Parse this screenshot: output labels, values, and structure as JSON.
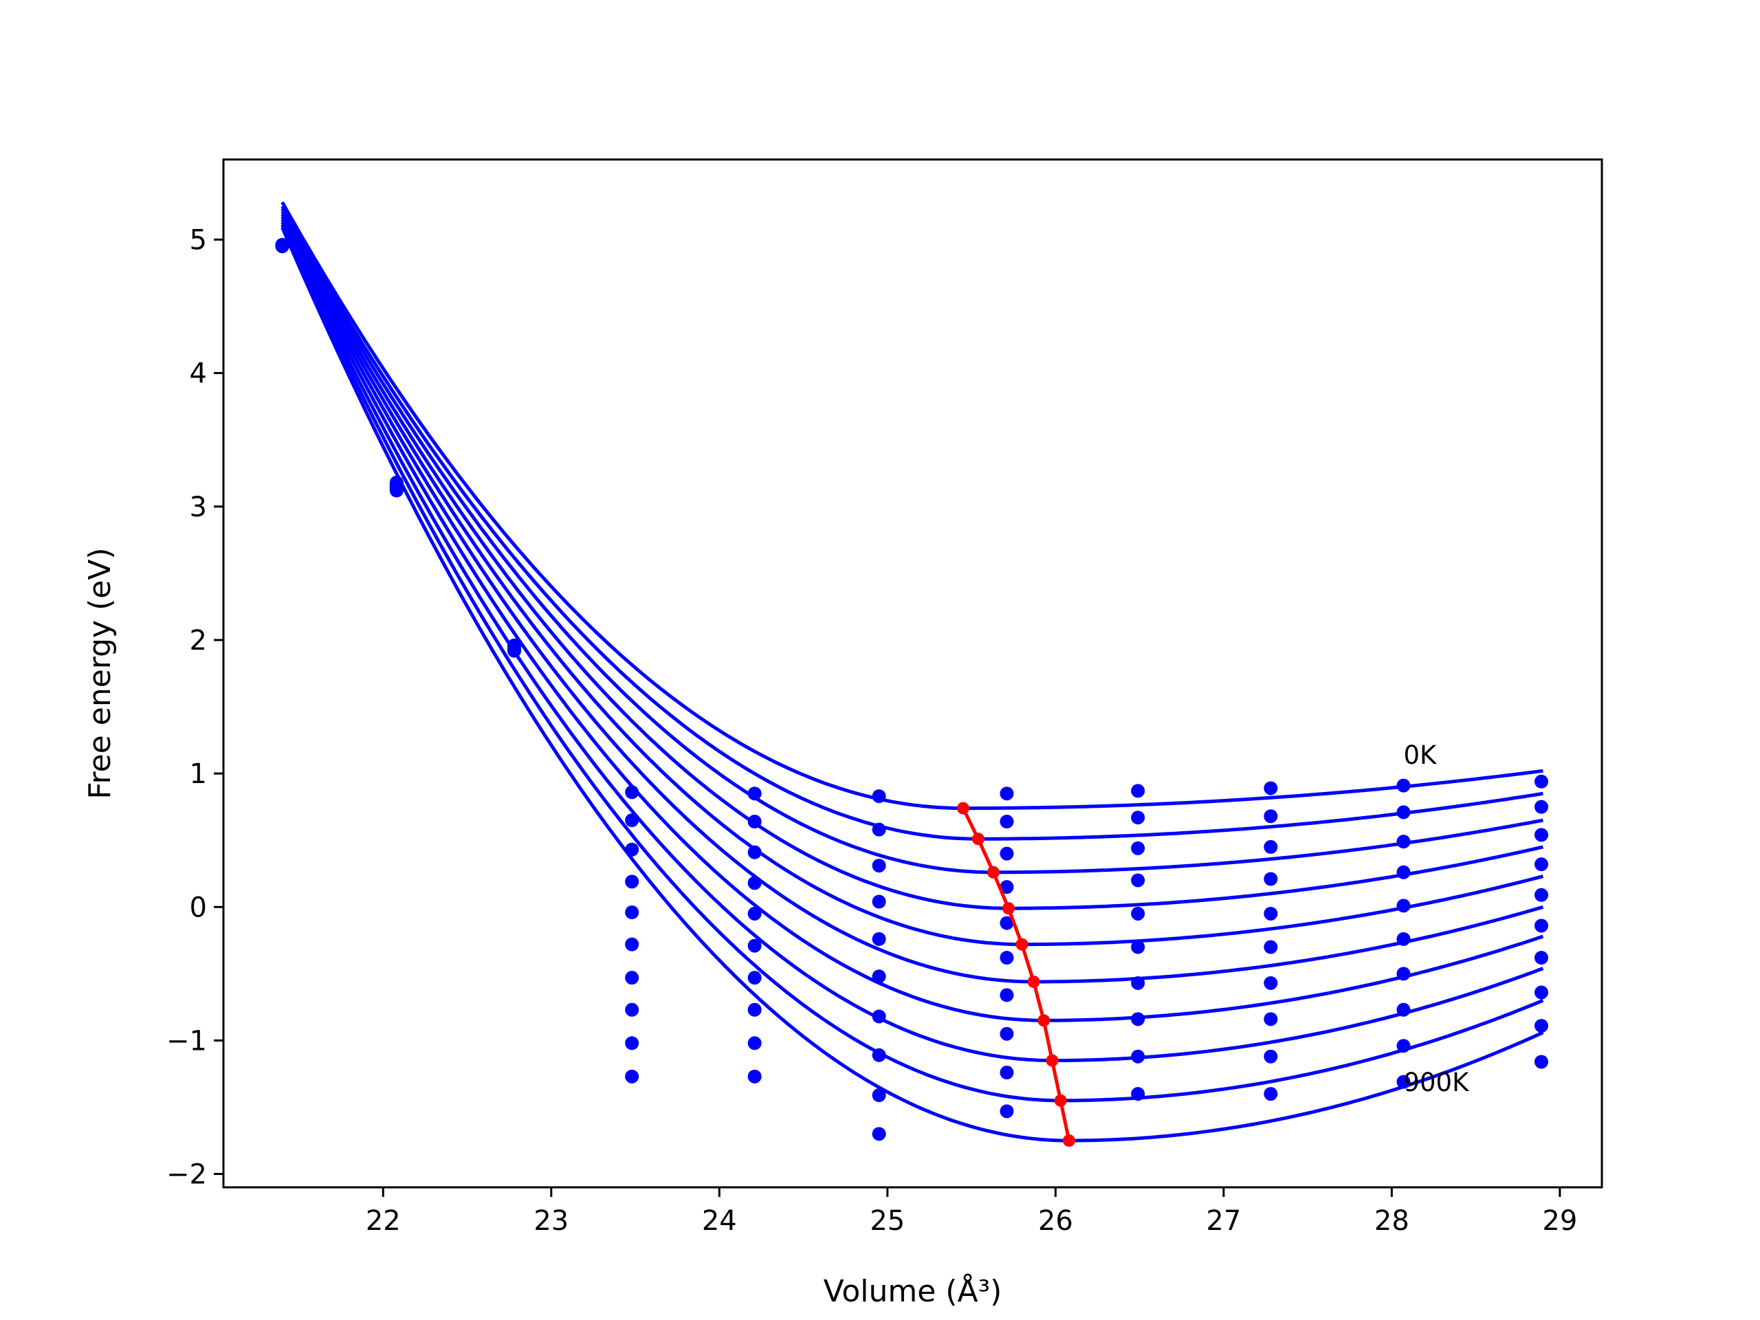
{
  "chart_data": {
    "type": "scatter",
    "xlabel": "Volume (Å³)",
    "ylabel": "Free energy (eV)",
    "xlim": [
      21.05,
      29.25
    ],
    "ylim": [
      -2.1,
      5.6
    ],
    "x_ticks": [
      22,
      23,
      24,
      25,
      26,
      27,
      28,
      29
    ],
    "y_ticks": [
      -2,
      -1,
      0,
      1,
      2,
      3,
      4,
      5
    ],
    "x_tick_labels": [
      "22",
      "23",
      "24",
      "25",
      "26",
      "27",
      "28",
      "29"
    ],
    "y_tick_labels": [
      "−2",
      "−1",
      "0",
      "1",
      "2",
      "3",
      "4",
      "5"
    ],
    "grid": false,
    "colors": {
      "curves": "#0000ff",
      "points": "#0000ff",
      "minima": "#ff0000",
      "axes": "#000000"
    },
    "curve_labels": {
      "first": "0K",
      "last": "900K"
    },
    "fit_range": [
      21.4,
      28.9
    ],
    "x": [
      21.4,
      22.08,
      22.78,
      23.48,
      24.21,
      24.95,
      25.71,
      26.49,
      27.28,
      28.07,
      28.89
    ],
    "series": [
      {
        "values": [
          4.96,
          3.18,
          1.96,
          0.86,
          0.85,
          0.83,
          0.85,
          0.87,
          0.89,
          0.91,
          0.94
        ]
      },
      {
        "values": [
          4.96,
          3.17,
          1.95,
          0.65,
          0.64,
          0.58,
          0.64,
          0.67,
          0.68,
          0.71,
          0.75
        ]
      },
      {
        "values": [
          4.96,
          3.16,
          1.95,
          0.43,
          0.41,
          0.31,
          0.4,
          0.44,
          0.45,
          0.49,
          0.54
        ]
      },
      {
        "values": [
          4.96,
          3.15,
          1.94,
          0.19,
          0.18,
          0.04,
          0.15,
          0.2,
          0.21,
          0.26,
          0.32
        ]
      },
      {
        "values": [
          4.96,
          3.15,
          1.94,
          -0.04,
          -0.05,
          -0.24,
          -0.12,
          -0.05,
          -0.05,
          0.01,
          0.09
        ]
      },
      {
        "values": [
          4.96,
          3.14,
          1.93,
          -0.28,
          -0.29,
          -0.52,
          -0.38,
          -0.3,
          -0.3,
          -0.24,
          -0.14
        ]
      },
      {
        "values": [
          4.96,
          3.14,
          1.93,
          -0.53,
          -0.53,
          -0.82,
          -0.66,
          -0.57,
          -0.57,
          -0.5,
          -0.38
        ]
      },
      {
        "values": [
          4.95,
          3.13,
          1.93,
          -0.77,
          -0.77,
          -1.11,
          -0.95,
          -0.84,
          -0.84,
          -0.77,
          -0.64
        ]
      },
      {
        "values": [
          4.95,
          3.13,
          1.92,
          -1.02,
          -1.02,
          -1.41,
          -1.24,
          -1.12,
          -1.12,
          -1.04,
          -0.89
        ]
      },
      {
        "values": [
          4.95,
          3.12,
          1.92,
          -1.27,
          -1.27,
          -1.7,
          -1.53,
          -1.4,
          -1.4,
          -1.31,
          -1.16
        ]
      }
    ],
    "fits": [
      {
        "v0": 25.45,
        "emin": 0.74,
        "edge": 5.28,
        "right": 1.02
      },
      {
        "v0": 25.54,
        "emin": 0.51,
        "edge": 5.25,
        "right": 0.85
      },
      {
        "v0": 25.63,
        "emin": 0.26,
        "edge": 5.23,
        "right": 0.65
      },
      {
        "v0": 25.72,
        "emin": -0.01,
        "edge": 5.21,
        "right": 0.45
      },
      {
        "v0": 25.8,
        "emin": -0.28,
        "edge": 5.19,
        "right": 0.23
      },
      {
        "v0": 25.87,
        "emin": -0.56,
        "edge": 5.17,
        "right": 0.0
      },
      {
        "v0": 25.93,
        "emin": -0.85,
        "edge": 5.15,
        "right": -0.22
      },
      {
        "v0": 25.98,
        "emin": -1.15,
        "edge": 5.13,
        "right": -0.46
      },
      {
        "v0": 26.03,
        "emin": -1.45,
        "edge": 5.11,
        "right": -0.7
      },
      {
        "v0": 26.08,
        "emin": -1.75,
        "edge": 5.09,
        "right": -0.94
      }
    ],
    "minima": {
      "x": [
        25.45,
        25.54,
        25.63,
        25.72,
        25.8,
        25.87,
        25.93,
        25.98,
        26.03,
        26.08
      ],
      "y": [
        0.74,
        0.51,
        0.26,
        -0.01,
        -0.28,
        -0.56,
        -0.85,
        -1.15,
        -1.45,
        -1.75
      ]
    }
  }
}
